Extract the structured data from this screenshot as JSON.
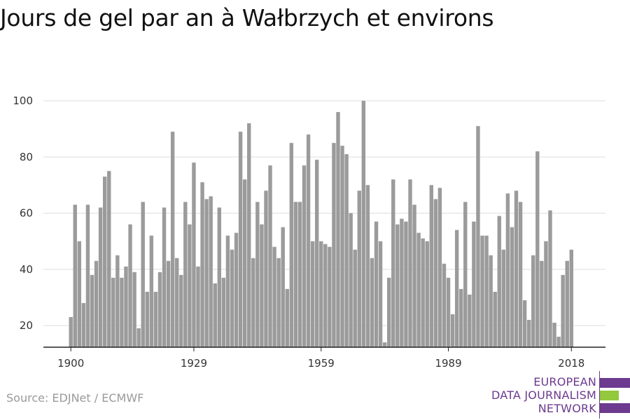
{
  "title": "Jours de gel par an à Wałbrzych et environs",
  "source": "Source: EDJNet / ECMWF",
  "logo": {
    "line1": "EUROPEAN",
    "line2": "DATA JOURNALISM",
    "line3": "NETWORK",
    "colors": {
      "purple": "#6c3a8e",
      "green": "#94c83d"
    }
  },
  "colors": {
    "bar": "#9b9b9b",
    "grid": "#dddddd",
    "axis": "#222222"
  },
  "chart_data": {
    "type": "bar",
    "title": "Jours de gel par an à Wałbrzych et environs",
    "xlabel": "",
    "ylabel": "",
    "ylim": [
      12,
      100
    ],
    "yticks": [
      20,
      40,
      60,
      80,
      100
    ],
    "xticks": [
      1900,
      1929,
      1959,
      1989,
      2018
    ],
    "grid": true,
    "legend": "none",
    "x": [
      1900,
      1901,
      1902,
      1903,
      1904,
      1905,
      1906,
      1907,
      1908,
      1909,
      1910,
      1911,
      1912,
      1913,
      1914,
      1915,
      1916,
      1917,
      1918,
      1919,
      1920,
      1921,
      1922,
      1923,
      1924,
      1925,
      1926,
      1927,
      1928,
      1929,
      1930,
      1931,
      1932,
      1933,
      1934,
      1935,
      1936,
      1937,
      1938,
      1939,
      1940,
      1941,
      1942,
      1943,
      1944,
      1945,
      1946,
      1947,
      1948,
      1949,
      1950,
      1951,
      1952,
      1953,
      1954,
      1955,
      1956,
      1957,
      1958,
      1959,
      1960,
      1961,
      1962,
      1963,
      1964,
      1965,
      1966,
      1967,
      1968,
      1969,
      1970,
      1971,
      1972,
      1973,
      1974,
      1975,
      1976,
      1977,
      1978,
      1979,
      1980,
      1981,
      1982,
      1983,
      1984,
      1985,
      1986,
      1987,
      1988,
      1989,
      1990,
      1991,
      1992,
      1993,
      1994,
      1995,
      1996,
      1997,
      1998,
      1999,
      2000,
      2001,
      2002,
      2003,
      2004,
      2005,
      2006,
      2007,
      2008,
      2009,
      2010,
      2011,
      2012,
      2013,
      2014,
      2015,
      2016,
      2017,
      2018
    ],
    "values": [
      23,
      63,
      50,
      28,
      63,
      38,
      43,
      62,
      73,
      75,
      37,
      45,
      37,
      41,
      56,
      39,
      19,
      64,
      32,
      52,
      32,
      39,
      62,
      43,
      89,
      44,
      38,
      64,
      56,
      78,
      41,
      71,
      65,
      66,
      35,
      62,
      37,
      52,
      47,
      53,
      89,
      72,
      92,
      44,
      64,
      56,
      68,
      77,
      48,
      44,
      55,
      33,
      85,
      64,
      64,
      77,
      88,
      50,
      79,
      50,
      49,
      48,
      85,
      96,
      84,
      81,
      60,
      47,
      68,
      100,
      70,
      44,
      57,
      50,
      14,
      37,
      72,
      56,
      58,
      57,
      72,
      63,
      53,
      51,
      50,
      70,
      65,
      69,
      42,
      37,
      24,
      54,
      33,
      64,
      31,
      57,
      91,
      52,
      52,
      45,
      32,
      59,
      47,
      67,
      55,
      68,
      64,
      29,
      22,
      45,
      82,
      43,
      50,
      61,
      21,
      16,
      38,
      43,
      47
    ]
  }
}
